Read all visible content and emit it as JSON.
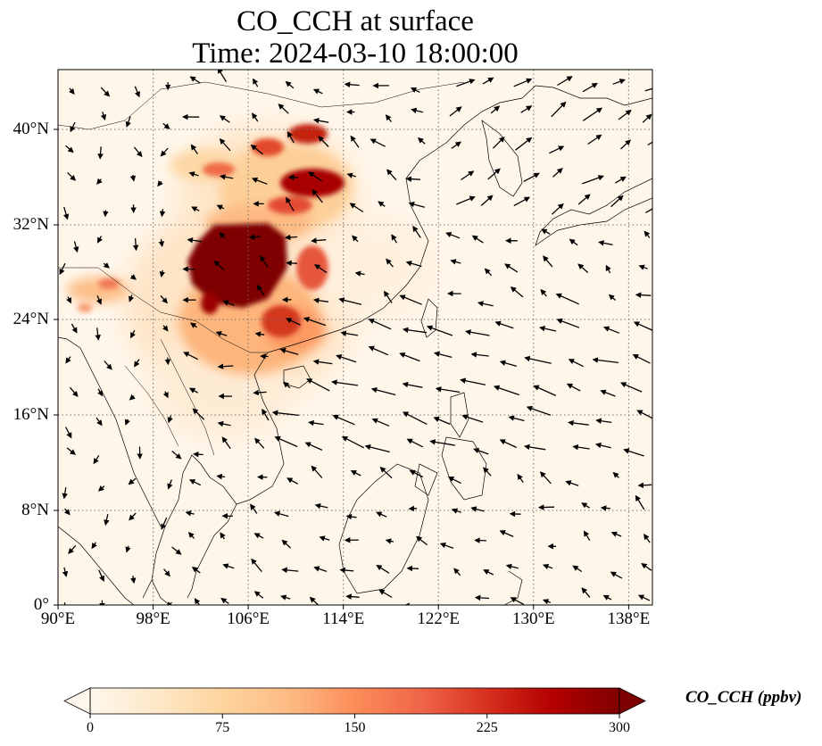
{
  "title": "CO_CCH at surface",
  "subtitle": "Time: 2024-03-10 18:00:00",
  "map": {
    "lon_range": [
      90,
      140
    ],
    "lat_range": [
      0,
      45
    ],
    "lat_ticks": [
      {
        "value": 0,
        "label": "0°"
      },
      {
        "value": 8,
        "label": "8°N"
      },
      {
        "value": 16,
        "label": "16°N"
      },
      {
        "value": 24,
        "label": "24°N"
      },
      {
        "value": 32,
        "label": "32°N"
      },
      {
        "value": 40,
        "label": "40°N"
      }
    ],
    "lon_ticks": [
      {
        "value": 90,
        "label": "90°E"
      },
      {
        "value": 98,
        "label": "98°E"
      },
      {
        "value": 106,
        "label": "106°E"
      },
      {
        "value": 114,
        "label": "114°E"
      },
      {
        "value": 122,
        "label": "122°E"
      },
      {
        "value": 130,
        "label": "130°E"
      },
      {
        "value": 138,
        "label": "138°E"
      }
    ],
    "gridlines": true,
    "field_colormap": "OrRd",
    "wind_vectors": true
  },
  "colorbar": {
    "label": "CO_CCH (ppbv)",
    "min": 0,
    "max": 300,
    "extend": "both",
    "ticks": [
      {
        "value": 0,
        "label": "0"
      },
      {
        "value": 75,
        "label": "75"
      },
      {
        "value": 150,
        "label": "150"
      },
      {
        "value": 225,
        "label": "225"
      },
      {
        "value": 300,
        "label": "300"
      }
    ],
    "colors": [
      "#fff7ec",
      "#fee8c8",
      "#fdd49e",
      "#fdbb84",
      "#fc8d59",
      "#ef6548",
      "#d7301f",
      "#b30000",
      "#7f0000"
    ]
  }
}
